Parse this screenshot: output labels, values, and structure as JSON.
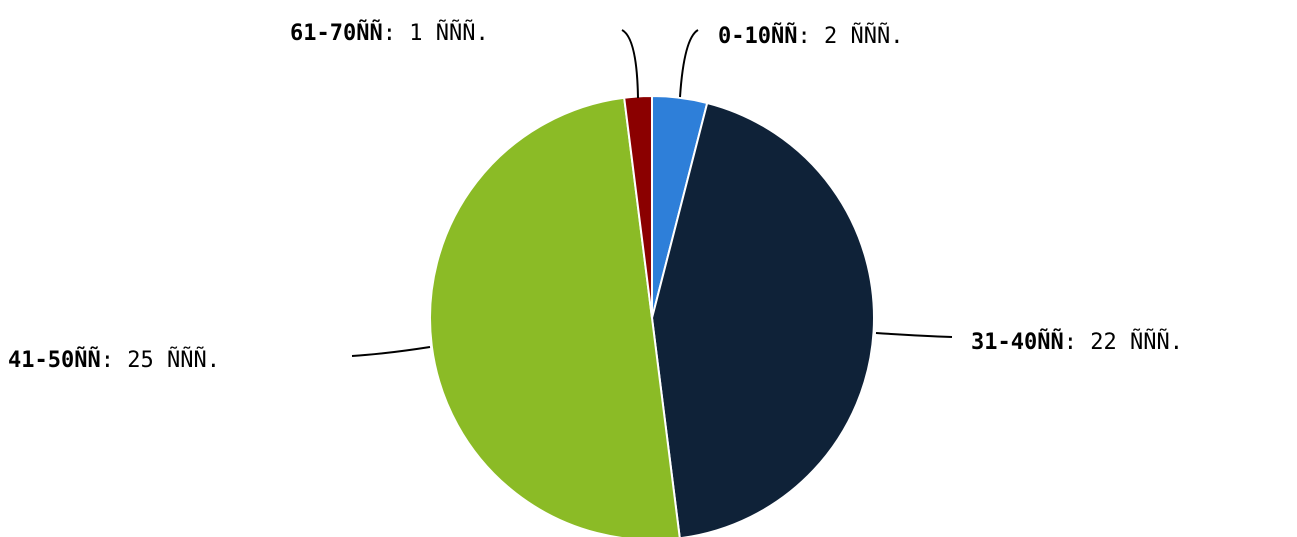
{
  "chart_data": {
    "type": "pie",
    "title": "",
    "categories": [
      "0-10ÑÑ",
      "31-40ÑÑ",
      "41-50ÑÑ",
      "61-70ÑÑ"
    ],
    "values": [
      2,
      22,
      25,
      1
    ],
    "value_suffix": "ÑÑÑ.",
    "colors": [
      "#2e7fd9",
      "#0f2238",
      "#8bbb26",
      "#8b0000"
    ],
    "labels": [
      {
        "category": "0-10ÑÑ",
        "separator": ": ",
        "value_text": "2 ÑÑÑ."
      },
      {
        "category": "31-40ÑÑ",
        "separator": ": ",
        "value_text": "22 ÑÑÑ."
      },
      {
        "category": "41-50ÑÑ",
        "separator": ": ",
        "value_text": "25 ÑÑÑ."
      },
      {
        "category": "61-70ÑÑ",
        "separator": ": ",
        "value_text": "1 ÑÑÑ."
      }
    ],
    "legend": "none",
    "start_angle": "12 o'clock, clockwise"
  }
}
